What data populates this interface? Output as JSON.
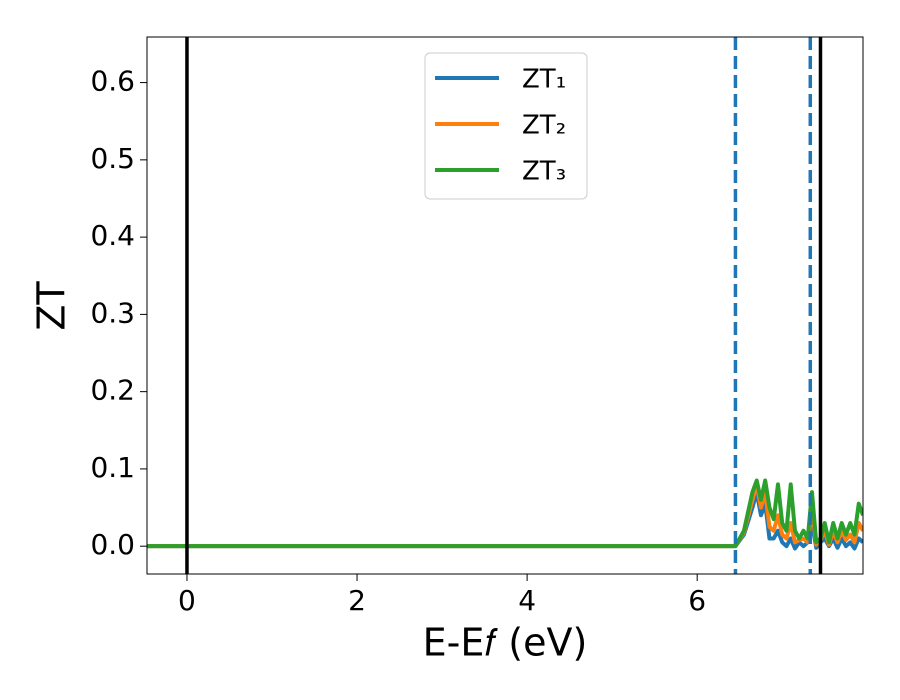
{
  "chart_data": {
    "type": "line",
    "xlabel": "E-E𝑓 (eV)",
    "ylabel": "ZT",
    "xlim": [
      -0.47,
      7.95
    ],
    "ylim": [
      -0.036,
      0.659
    ],
    "xticks": [
      0,
      2,
      4,
      6
    ],
    "yticks": [
      {
        "value": 0,
        "label": "0.0"
      },
      0.1,
      0.2,
      0.3,
      0.4,
      0.5,
      0.6
    ],
    "legend": "upper center",
    "vlines": [
      {
        "x": 0,
        "color": "#000000",
        "style": "solid"
      },
      {
        "x": 7.45,
        "color": "#000000",
        "style": "solid"
      },
      {
        "x": 6.45,
        "color": "#1f77b4",
        "style": "dashed"
      },
      {
        "x": 7.33,
        "color": "#1f77b4",
        "style": "dashed"
      }
    ],
    "x": [
      -0.47,
      6.45,
      6.55,
      6.65,
      6.7,
      6.75,
      6.8,
      6.85,
      6.9,
      6.95,
      7.0,
      7.05,
      7.1,
      7.15,
      7.2,
      7.25,
      7.3,
      7.35,
      7.4,
      7.45,
      7.5,
      7.55,
      7.6,
      7.65,
      7.7,
      7.75,
      7.8,
      7.85,
      7.9,
      7.95
    ],
    "series": [
      {
        "name": "ZT₁",
        "color": "#1f77b4",
        "values": [
          0,
          0,
          0.015,
          0.05,
          0.07,
          0.04,
          0.055,
          0.01,
          0.01,
          0.02,
          0.005,
          0.0,
          0.01,
          -0.003,
          0.005,
          0.0,
          0.005,
          0.03,
          -0.002,
          0.005,
          0.01,
          0.0,
          0.01,
          -0.002,
          0.01,
          0.0,
          0.005,
          -0.003,
          0.01,
          0.005
        ]
      },
      {
        "name": "ZT₂",
        "color": "#ff7f0e",
        "values": [
          0,
          0,
          0.018,
          0.06,
          0.08,
          0.05,
          0.07,
          0.025,
          0.02,
          0.04,
          0.015,
          0.01,
          0.03,
          0.005,
          0.008,
          0.01,
          0.005,
          0.05,
          0.002,
          0.008,
          0.02,
          0.002,
          0.02,
          0.005,
          0.02,
          0.008,
          0.015,
          0.005,
          0.03,
          0.02
        ]
      },
      {
        "name": "ZT₃",
        "color": "#2ca02c",
        "values": [
          0,
          0,
          0.02,
          0.07,
          0.085,
          0.06,
          0.085,
          0.05,
          0.035,
          0.08,
          0.03,
          0.02,
          0.08,
          0.02,
          0.01,
          0.02,
          0.01,
          0.07,
          0.005,
          0.01,
          0.03,
          0.005,
          0.03,
          0.01,
          0.03,
          0.015,
          0.03,
          0.015,
          0.055,
          0.04
        ]
      }
    ]
  }
}
